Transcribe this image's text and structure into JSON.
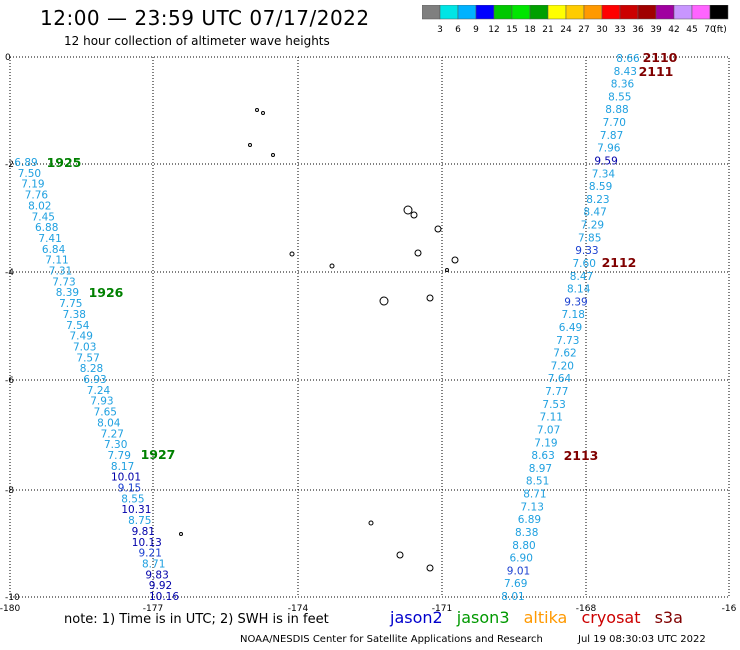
{
  "header": {
    "title": "12:00 — 23:59 UTC 07/17/2022",
    "subtitle": "12 hour collection of altimeter wave heights"
  },
  "color_scale": {
    "labels": [
      "3",
      "6",
      "9",
      "12",
      "15",
      "18",
      "21",
      "24",
      "27",
      "30",
      "33",
      "36",
      "39",
      "42",
      "45",
      "70"
    ],
    "unit": "(ft)",
    "colors": [
      "#7f7f7f",
      "#00e5e5",
      "#00b2ff",
      "#0000ff",
      "#00c800",
      "#00e600",
      "#00a000",
      "#ffff00",
      "#ffcc00",
      "#ff9900",
      "#ff0000",
      "#cc0000",
      "#a00000",
      "#a000a0",
      "#c896ff",
      "#ff64ff",
      "#000000"
    ]
  },
  "axes": {
    "lon_ticks": [
      "-180",
      "-177",
      "-174",
      "-171",
      "-168",
      "-16"
    ],
    "lat_ticks": [
      "0",
      "-2",
      "-4",
      "-6",
      "-8",
      "-10"
    ]
  },
  "track_labels": [
    {
      "text": "1925",
      "color": "#008000"
    },
    {
      "text": "1926",
      "color": "#008000"
    },
    {
      "text": "1927",
      "color": "#008000"
    },
    {
      "text": "2110",
      "color": "#800000"
    },
    {
      "text": "2111",
      "color": "#800000"
    },
    {
      "text": "2112",
      "color": "#800000"
    },
    {
      "text": "2113",
      "color": "#800000"
    }
  ],
  "track_left": [
    "6.89",
    "7.50",
    "7.19",
    "7.76",
    "8.02",
    "7.45",
    "6.88",
    "7.41",
    "6.84",
    "7.11",
    "7.31",
    "7.73",
    "8.39",
    "7.75",
    "7.38",
    "7.54",
    "7.49",
    "7.03",
    "7.57",
    "8.28",
    "6.93",
    "7.24",
    "7.93",
    "7.65",
    "8.04",
    "7.27",
    "7.30",
    "7.79",
    "8.17",
    "10.01",
    "9.15",
    "8.55",
    "10.31",
    "8.75",
    "9.81",
    "10.13",
    "9.21",
    "8.71",
    "9.83",
    "9.92",
    "10.16"
  ],
  "track_right": [
    "8.66",
    "8.43",
    "8.36",
    "8.55",
    "8.88",
    "7.70",
    "7.87",
    "7.96",
    "9.59",
    "7.34",
    "8.59",
    "8.23",
    "8.47",
    "7.29",
    "7.85",
    "9.33",
    "7.60",
    "8.47",
    "8.14",
    "9.39",
    "7.18",
    "6.49",
    "7.73",
    "7.62",
    "7.20",
    "7.64",
    "7.77",
    "7.53",
    "7.11",
    "7.07",
    "7.19",
    "8.63",
    "8.97",
    "8.51",
    "8.71",
    "7.13",
    "6.89",
    "8.38",
    "8.80",
    "6.90",
    "9.01",
    "7.69",
    "8.01"
  ],
  "note": "note:  1) Time is in UTC; 2) SWH is in feet",
  "satellites": [
    {
      "name": "jason2",
      "color": "#0000cc"
    },
    {
      "name": "jason3",
      "color": "#009900"
    },
    {
      "name": "altika",
      "color": "#ff9900"
    },
    {
      "name": "cryosat",
      "color": "#cc0000"
    },
    {
      "name": "s3a",
      "color": "#800000"
    }
  ],
  "footer": {
    "center": "NOAA/NESDIS Center for Satellite Applications and Research",
    "timestamp": "Jul 19 08:30:03 UTC 2022"
  }
}
